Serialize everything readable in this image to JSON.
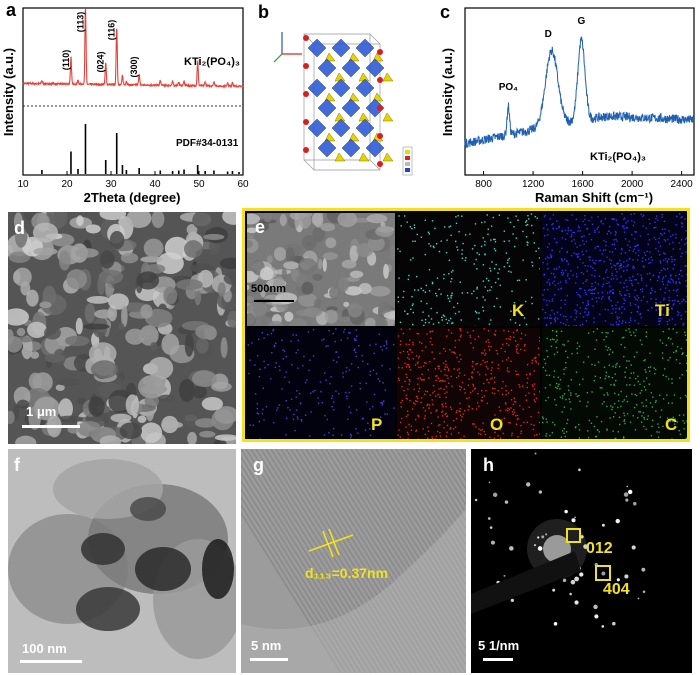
{
  "panels": {
    "a": "a",
    "b": "b",
    "c": "c",
    "d": "d",
    "e": "e",
    "f": "f",
    "g": "g",
    "h": "h"
  },
  "xrd": {
    "sample_label": "KTi₂(PO₄)₃",
    "reference_label": "PDF#34-0131",
    "peak_labels": [
      {
        "text": "(110)",
        "x": 20.9
      },
      {
        "text": "(113)",
        "x": 24.2
      },
      {
        "text": "(024)",
        "x": 28.8
      },
      {
        "text": "(116)",
        "x": 31.3
      },
      {
        "text": "(300)",
        "x": 36.4
      }
    ]
  },
  "raman": {
    "sample_label": "KTi₂(PO₄)₃",
    "band_labels": [
      {
        "text": "PO₄",
        "x": 1000
      },
      {
        "text": "D",
        "x": 1355
      },
      {
        "text": "G",
        "x": 1590
      }
    ]
  },
  "sem": {
    "scale": "1 μm"
  },
  "eds": {
    "scale": "500nm",
    "elements": [
      "K",
      "Ti",
      "P",
      "O",
      "C"
    ],
    "colors": {
      "K": "#3fd9c9",
      "Ti": "#2b35ff",
      "P": "#4a3fd8",
      "O": "#e0281c",
      "C": "#2fa84a",
      "frame": "#f5e11a"
    }
  },
  "tem": {
    "scale": "100 nm"
  },
  "hrtem": {
    "scale": "5 nm",
    "d_spacing": "d₁₁₃=0.37nm"
  },
  "saed": {
    "scale": "5 1/nm",
    "spots": [
      "012",
      "404"
    ]
  },
  "chart_data": [
    {
      "type": "line",
      "title": "",
      "xlabel": "2Theta (degree)",
      "ylabel": "Intensity (a.u.)",
      "xlim": [
        10,
        60
      ],
      "xticks": [
        10,
        20,
        30,
        40,
        50,
        60
      ],
      "series": [
        {
          "name": "KTi₂(PO₄)₃",
          "color": "#e8413a",
          "baseline": 0.52,
          "peaks": [
            [
              14.3,
              0.04
            ],
            [
              20.9,
              0.36
            ],
            [
              22.5,
              0.05
            ],
            [
              24.2,
              1.0
            ],
            [
              28.8,
              0.28
            ],
            [
              31.3,
              0.75
            ],
            [
              32.6,
              0.12
            ],
            [
              33.5,
              0.05
            ],
            [
              36.4,
              0.14
            ],
            [
              41.2,
              0.06
            ],
            [
              44.0,
              0.05
            ],
            [
              45.4,
              0.04
            ],
            [
              46.6,
              0.05
            ],
            [
              49.7,
              0.32
            ],
            [
              51.4,
              0.05
            ],
            [
              53.4,
              0.06
            ],
            [
              56.5,
              0.04
            ],
            [
              57.6,
              0.05
            ]
          ]
        },
        {
          "name": "PDF#34-0131",
          "color": "#000000",
          "sticks": [
            [
              14.3,
              0.08
            ],
            [
              20.9,
              0.45
            ],
            [
              22.5,
              0.1
            ],
            [
              24.2,
              1.0
            ],
            [
              28.8,
              0.28
            ],
            [
              31.3,
              0.82
            ],
            [
              32.6,
              0.18
            ],
            [
              33.5,
              0.08
            ],
            [
              36.4,
              0.12
            ],
            [
              41.2,
              0.07
            ],
            [
              44.0,
              0.06
            ],
            [
              45.4,
              0.07
            ],
            [
              46.6,
              0.09
            ],
            [
              49.7,
              0.18
            ],
            [
              51.4,
              0.06
            ],
            [
              53.4,
              0.07
            ],
            [
              56.5,
              0.05
            ],
            [
              57.6,
              0.06
            ],
            [
              59.1,
              0.04
            ]
          ]
        }
      ]
    },
    {
      "type": "line",
      "title": "",
      "xlabel": "Raman Shift (cm⁻¹)",
      "ylabel": "Intensity (a.u.)",
      "xlim": [
        650,
        2500
      ],
      "xticks": [
        800,
        1200,
        1600,
        2000,
        2400
      ],
      "series": [
        {
          "name": "KTi₂(PO₄)₃",
          "color": "#1f5fb4",
          "components": [
            [
              1000,
              0.22,
              14
            ],
            [
              1350,
              0.58,
              70
            ],
            [
              1590,
              0.62,
              40
            ]
          ],
          "background": [
            0.05,
            0.22
          ]
        }
      ]
    }
  ]
}
